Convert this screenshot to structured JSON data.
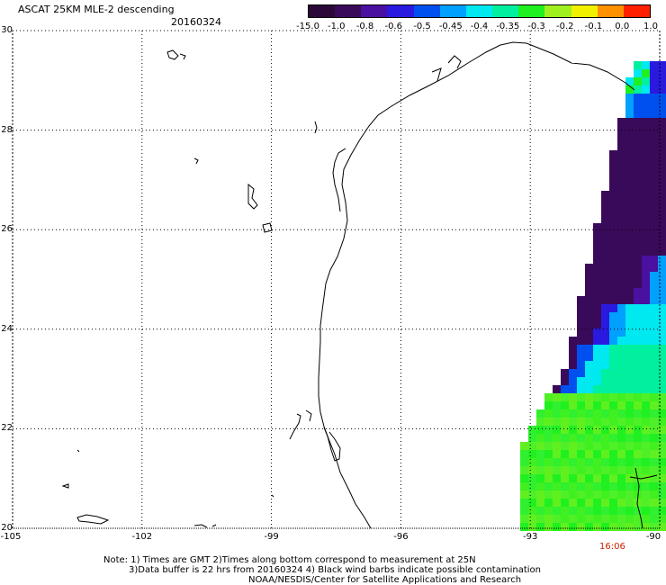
{
  "header": {
    "title": "ASCAT 25KM MLE-2 descending",
    "date": "20160324"
  },
  "colorbar": {
    "labels": [
      "-15.0",
      "-1.0",
      "-0.8",
      "-0.6",
      "-0.5",
      "-0.45",
      "-0.4",
      "-0.35",
      "-0.3",
      "-0.2",
      "-0.1",
      "0.0",
      "1.0"
    ],
    "colors": [
      "#2a0838",
      "#3a0a5a",
      "#4a10a0",
      "#2a1ae0",
      "#0050f0",
      "#00a0ff",
      "#00e8f0",
      "#00f0a0",
      "#20f020",
      "#a0f020",
      "#f0f000",
      "#ff9000",
      "#ff2000"
    ]
  },
  "axes": {
    "lat_labels": [
      "30",
      "28",
      "26",
      "24",
      "22",
      "20"
    ],
    "lon_labels": [
      "-105",
      "-102",
      "-99",
      "-96",
      "-93",
      "-90"
    ],
    "lat_range": [
      20,
      30
    ],
    "lon_range": [
      -105,
      -90
    ]
  },
  "time_label": "16:06",
  "notes": {
    "line1": "Note: 1) Times are GMT 2)Times along bottom correspond to measurement at 25N",
    "line2": "3)Data buffer is 22 hrs from 20160324 4) Black wind barbs indicate possible contamination",
    "line3": "NOAA/NESDIS/Center for Satellite Applications and Research"
  }
}
